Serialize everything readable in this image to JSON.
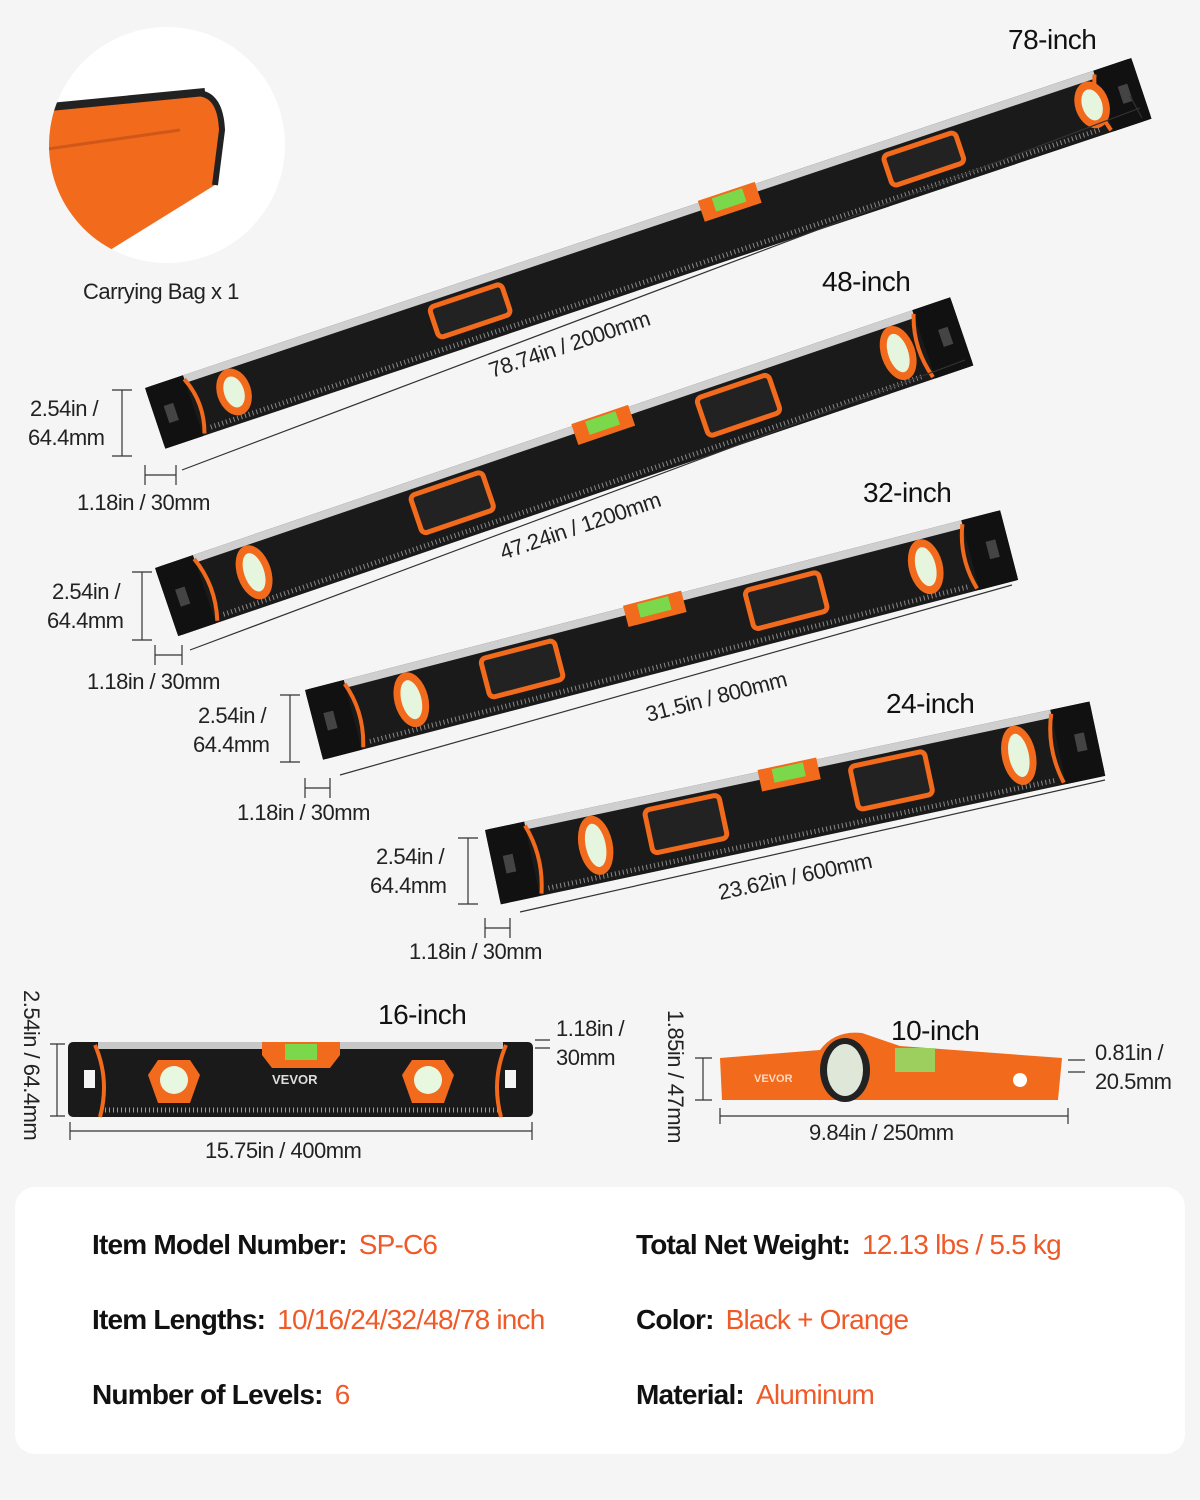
{
  "accessory": {
    "label": "Carrying Bag x 1"
  },
  "levels": [
    {
      "title": "78-inch",
      "length": "78.74in / 2000mm",
      "height_in": "2.54in /",
      "height_mm": "64.4mm",
      "width": "1.18in / 30mm"
    },
    {
      "title": "48-inch",
      "length": "47.24in / 1200mm",
      "height_in": "2.54in /",
      "height_mm": "64.4mm",
      "width": "1.18in / 30mm"
    },
    {
      "title": "32-inch",
      "length": "31.5in / 800mm",
      "height_in": "2.54in /",
      "height_mm": "64.4mm",
      "width": "1.18in / 30mm"
    },
    {
      "title": "24-inch",
      "length": "23.62in / 600mm",
      "height_in": "2.54in /",
      "height_mm": "64.4mm",
      "width": "1.18in / 30mm"
    },
    {
      "title": "16-inch",
      "length": "15.75in / 400mm",
      "height": "2.54in / 64.4mm",
      "width_in": "1.18in /",
      "width_mm": "30mm"
    },
    {
      "title": "10-inch",
      "length": "9.84in / 250mm",
      "height": "1.85in / 47mm",
      "width_in": "0.81in /",
      "width_mm": "20.5mm"
    }
  ],
  "brand": "VEVOR",
  "specs": {
    "model": {
      "label": "Item Model Number:",
      "value": "SP-C6"
    },
    "lengths": {
      "label": "Item Lengths:",
      "value": "10/16/24/32/48/78 inch"
    },
    "count": {
      "label": "Number of Levels:",
      "value": "6"
    },
    "weight": {
      "label": "Total Net Weight:",
      "value": "12.13 lbs / 5.5 kg"
    },
    "color": {
      "label": "Color:",
      "value": "Black + Orange"
    },
    "material": {
      "label": "Material:",
      "value": "Aluminum"
    }
  },
  "colors": {
    "accent": "#f05a28",
    "body": "#1a1a1a",
    "orange": "#f26a1b",
    "vial": "#7bd84a"
  }
}
